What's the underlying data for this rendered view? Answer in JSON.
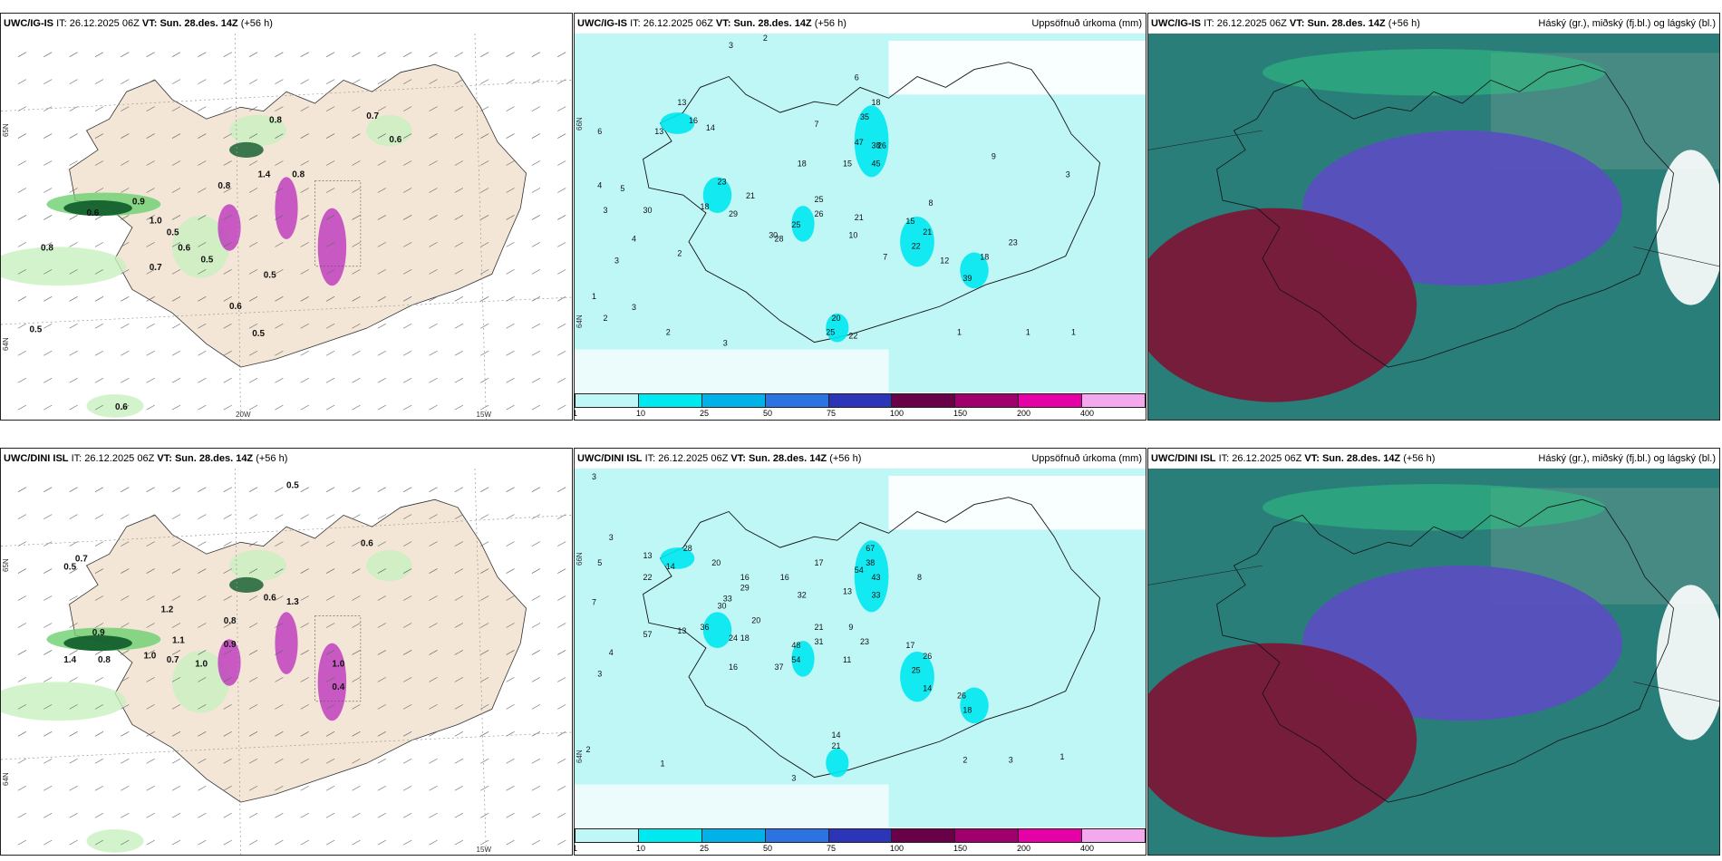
{
  "panels": [
    {
      "id": "p1",
      "source": "UWC/IG-IS",
      "it_label": "IT:",
      "it": "26.12.2025 06Z",
      "vt_label": "VT:",
      "vt": "Sun. 28.des. 14Z",
      "lead": "(+56 h)",
      "product": "",
      "kind": "cloud-wind",
      "values": [
        {
          "t": "0.8",
          "x": 0.47,
          "y": 0.23
        },
        {
          "t": "0.7",
          "x": 0.64,
          "y": 0.22
        },
        {
          "t": "0.6",
          "x": 0.68,
          "y": 0.28
        },
        {
          "t": "0.8",
          "x": 0.38,
          "y": 0.4
        },
        {
          "t": "0.6",
          "x": 0.15,
          "y": 0.47
        },
        {
          "t": "0.9",
          "x": 0.23,
          "y": 0.44
        },
        {
          "t": "1.0",
          "x": 0.26,
          "y": 0.49
        },
        {
          "t": "0.5",
          "x": 0.29,
          "y": 0.52
        },
        {
          "t": "0.6",
          "x": 0.31,
          "y": 0.56
        },
        {
          "t": "0.5",
          "x": 0.35,
          "y": 0.59
        },
        {
          "t": "0.7",
          "x": 0.26,
          "y": 0.61
        },
        {
          "t": "0.8",
          "x": 0.07,
          "y": 0.56
        },
        {
          "t": "0.5",
          "x": 0.46,
          "y": 0.63
        },
        {
          "t": "0.6",
          "x": 0.4,
          "y": 0.71
        },
        {
          "t": "0.5",
          "x": 0.05,
          "y": 0.77
        },
        {
          "t": "0.5",
          "x": 0.44,
          "y": 0.78
        },
        {
          "t": "0.6",
          "x": 0.2,
          "y": 0.97
        },
        {
          "t": "1.4",
          "x": 0.45,
          "y": 0.37
        },
        {
          "t": "0.8",
          "x": 0.51,
          "y": 0.37
        }
      ],
      "lon_labels": [
        "20W",
        "15W"
      ],
      "lat_labels": [
        "65N",
        "64N"
      ]
    },
    {
      "id": "p2",
      "source": "UWC/IG-IS",
      "it_label": "IT:",
      "it": "26.12.2025 06Z",
      "vt_label": "VT:",
      "vt": "Sun. 28.des. 14Z",
      "lead": "(+56 h)",
      "product": "Uppsöfnuð úrkoma (mm)",
      "kind": "precip",
      "values": [
        {
          "t": "13",
          "x": 0.18,
          "y": 0.2
        },
        {
          "t": "16",
          "x": 0.2,
          "y": 0.25
        },
        {
          "t": "14",
          "x": 0.23,
          "y": 0.27
        },
        {
          "t": "13",
          "x": 0.14,
          "y": 0.28
        },
        {
          "t": "18",
          "x": 0.52,
          "y": 0.2
        },
        {
          "t": "35",
          "x": 0.5,
          "y": 0.24
        },
        {
          "t": "47",
          "x": 0.49,
          "y": 0.31
        },
        {
          "t": "38",
          "x": 0.52,
          "y": 0.32
        },
        {
          "t": "26",
          "x": 0.53,
          "y": 0.32
        },
        {
          "t": "45",
          "x": 0.52,
          "y": 0.37
        },
        {
          "t": "18",
          "x": 0.39,
          "y": 0.37
        },
        {
          "t": "15",
          "x": 0.47,
          "y": 0.37
        },
        {
          "t": "23",
          "x": 0.25,
          "y": 0.42
        },
        {
          "t": "21",
          "x": 0.3,
          "y": 0.46
        },
        {
          "t": "18",
          "x": 0.22,
          "y": 0.49
        },
        {
          "t": "29",
          "x": 0.27,
          "y": 0.51
        },
        {
          "t": "25",
          "x": 0.42,
          "y": 0.47
        },
        {
          "t": "26",
          "x": 0.42,
          "y": 0.51
        },
        {
          "t": "21",
          "x": 0.49,
          "y": 0.52
        },
        {
          "t": "30",
          "x": 0.34,
          "y": 0.57
        },
        {
          "t": "28",
          "x": 0.35,
          "y": 0.58
        },
        {
          "t": "25",
          "x": 0.38,
          "y": 0.54
        },
        {
          "t": "15",
          "x": 0.58,
          "y": 0.53
        },
        {
          "t": "21",
          "x": 0.61,
          "y": 0.56
        },
        {
          "t": "22",
          "x": 0.59,
          "y": 0.6
        },
        {
          "t": "12",
          "x": 0.64,
          "y": 0.64
        },
        {
          "t": "18",
          "x": 0.71,
          "y": 0.63
        },
        {
          "t": "39",
          "x": 0.68,
          "y": 0.69
        },
        {
          "t": "23",
          "x": 0.76,
          "y": 0.59
        },
        {
          "t": "20",
          "x": 0.45,
          "y": 0.8
        },
        {
          "t": "25",
          "x": 0.44,
          "y": 0.84
        },
        {
          "t": "22",
          "x": 0.48,
          "y": 0.85
        },
        {
          "t": "30",
          "x": 0.12,
          "y": 0.5
        },
        {
          "t": "6",
          "x": 0.04,
          "y": 0.28
        },
        {
          "t": "4",
          "x": 0.04,
          "y": 0.43
        },
        {
          "t": "5",
          "x": 0.08,
          "y": 0.44
        },
        {
          "t": "3",
          "x": 0.05,
          "y": 0.5
        },
        {
          "t": "4",
          "x": 0.1,
          "y": 0.58
        },
        {
          "t": "3",
          "x": 0.07,
          "y": 0.64
        },
        {
          "t": "2",
          "x": 0.18,
          "y": 0.62
        },
        {
          "t": "1",
          "x": 0.03,
          "y": 0.74
        },
        {
          "t": "3",
          "x": 0.1,
          "y": 0.77
        },
        {
          "t": "2",
          "x": 0.05,
          "y": 0.8
        },
        {
          "t": "2",
          "x": 0.16,
          "y": 0.84
        },
        {
          "t": "3",
          "x": 0.26,
          "y": 0.87
        },
        {
          "t": "1",
          "x": 0.67,
          "y": 0.84
        },
        {
          "t": "1",
          "x": 0.79,
          "y": 0.84
        },
        {
          "t": "1",
          "x": 0.87,
          "y": 0.84
        },
        {
          "t": "3",
          "x": 0.27,
          "y": 0.04
        },
        {
          "t": "2",
          "x": 0.33,
          "y": 0.02
        },
        {
          "t": "6",
          "x": 0.49,
          "y": 0.13
        },
        {
          "t": "7",
          "x": 0.42,
          "y": 0.26
        },
        {
          "t": "8",
          "x": 0.62,
          "y": 0.48
        },
        {
          "t": "10",
          "x": 0.48,
          "y": 0.57
        },
        {
          "t": "7",
          "x": 0.54,
          "y": 0.63
        },
        {
          "t": "9",
          "x": 0.73,
          "y": 0.35
        },
        {
          "t": "3",
          "x": 0.86,
          "y": 0.4
        }
      ],
      "scale": [
        "1",
        "10",
        "25",
        "50",
        "75",
        "100",
        "150",
        "200",
        "400"
      ],
      "scale_colors": [
        "#bff6f6",
        "#00e8f0",
        "#00b2e8",
        "#2a73e0",
        "#2c34b8",
        "#6a0047",
        "#a0006e",
        "#e600a8",
        "#f4a8ee"
      ],
      "lat_labels": [
        "66N",
        "64N"
      ]
    },
    {
      "id": "p3",
      "source": "UWC/IG-IS",
      "it_label": "IT:",
      "it": "26.12.2025 06Z",
      "vt_label": "VT:",
      "vt": "Sun. 28.des. 14Z",
      "lead": "(+56 h)",
      "product": "Háský (gr.), miðský (fj.bl.) og lágský (bl.)",
      "kind": "clouds"
    },
    {
      "id": "p4",
      "source": "UWC/DINI ISL",
      "it_label": "IT:",
      "it": "26.12.2025 06Z",
      "vt_label": "VT:",
      "vt": "Sun. 28.des. 14Z",
      "lead": "(+56 h)",
      "product": "",
      "kind": "cloud-wind",
      "values": [
        {
          "t": "0.5",
          "x": 0.5,
          "y": 0.05
        },
        {
          "t": "0.6",
          "x": 0.63,
          "y": 0.2
        },
        {
          "t": "0.7",
          "x": 0.13,
          "y": 0.24
        },
        {
          "t": "0.5",
          "x": 0.11,
          "y": 0.26
        },
        {
          "t": "1.2",
          "x": 0.28,
          "y": 0.37
        },
        {
          "t": "0.9",
          "x": 0.16,
          "y": 0.43
        },
        {
          "t": "1.1",
          "x": 0.3,
          "y": 0.45
        },
        {
          "t": "1.0",
          "x": 0.25,
          "y": 0.49
        },
        {
          "t": "0.7",
          "x": 0.29,
          "y": 0.5
        },
        {
          "t": "0.8",
          "x": 0.17,
          "y": 0.5
        },
        {
          "t": "1.4",
          "x": 0.11,
          "y": 0.5
        },
        {
          "t": "1.0",
          "x": 0.34,
          "y": 0.51
        },
        {
          "t": "0.9",
          "x": 0.39,
          "y": 0.46
        },
        {
          "t": "0.8",
          "x": 0.39,
          "y": 0.4
        },
        {
          "t": "0.6",
          "x": 0.46,
          "y": 0.34
        },
        {
          "t": "1.3",
          "x": 0.5,
          "y": 0.35
        },
        {
          "t": "0.4",
          "x": 0.58,
          "y": 0.57
        },
        {
          "t": "1.0",
          "x": 0.58,
          "y": 0.51
        }
      ],
      "lon_labels": [
        "15W"
      ],
      "lat_labels": [
        "65N",
        "64N"
      ]
    },
    {
      "id": "p5",
      "source": "UWC/DINI ISL",
      "it_label": "IT:",
      "it": "26.12.2025 06Z",
      "vt_label": "VT:",
      "vt": "Sun. 28.des. 14Z",
      "lead": "(+56 h)",
      "product": "Uppsöfnuð úrkoma (mm)",
      "kind": "precip",
      "values": [
        {
          "t": "13",
          "x": 0.12,
          "y": 0.25
        },
        {
          "t": "22",
          "x": 0.12,
          "y": 0.31
        },
        {
          "t": "14",
          "x": 0.16,
          "y": 0.28
        },
        {
          "t": "28",
          "x": 0.19,
          "y": 0.23
        },
        {
          "t": "20",
          "x": 0.24,
          "y": 0.27
        },
        {
          "t": "16",
          "x": 0.29,
          "y": 0.31
        },
        {
          "t": "29",
          "x": 0.29,
          "y": 0.34
        },
        {
          "t": "33",
          "x": 0.26,
          "y": 0.37
        },
        {
          "t": "30",
          "x": 0.25,
          "y": 0.39
        },
        {
          "t": "20",
          "x": 0.31,
          "y": 0.43
        },
        {
          "t": "16",
          "x": 0.36,
          "y": 0.31
        },
        {
          "t": "17",
          "x": 0.42,
          "y": 0.27
        },
        {
          "t": "32",
          "x": 0.39,
          "y": 0.36
        },
        {
          "t": "67",
          "x": 0.51,
          "y": 0.23
        },
        {
          "t": "38",
          "x": 0.51,
          "y": 0.27
        },
        {
          "t": "54",
          "x": 0.49,
          "y": 0.29
        },
        {
          "t": "43",
          "x": 0.52,
          "y": 0.31
        },
        {
          "t": "33",
          "x": 0.52,
          "y": 0.36
        },
        {
          "t": "13",
          "x": 0.47,
          "y": 0.35
        },
        {
          "t": "36",
          "x": 0.22,
          "y": 0.45
        },
        {
          "t": "13",
          "x": 0.18,
          "y": 0.46
        },
        {
          "t": "57",
          "x": 0.12,
          "y": 0.47
        },
        {
          "t": "24",
          "x": 0.27,
          "y": 0.48
        },
        {
          "t": "18",
          "x": 0.29,
          "y": 0.48
        },
        {
          "t": "21",
          "x": 0.42,
          "y": 0.45
        },
        {
          "t": "31",
          "x": 0.42,
          "y": 0.49
        },
        {
          "t": "48",
          "x": 0.38,
          "y": 0.5
        },
        {
          "t": "54",
          "x": 0.38,
          "y": 0.54
        },
        {
          "t": "37",
          "x": 0.35,
          "y": 0.56
        },
        {
          "t": "23",
          "x": 0.5,
          "y": 0.49
        },
        {
          "t": "17",
          "x": 0.58,
          "y": 0.5
        },
        {
          "t": "26",
          "x": 0.61,
          "y": 0.53
        },
        {
          "t": "25",
          "x": 0.59,
          "y": 0.57
        },
        {
          "t": "14",
          "x": 0.61,
          "y": 0.62
        },
        {
          "t": "26",
          "x": 0.67,
          "y": 0.64
        },
        {
          "t": "18",
          "x": 0.68,
          "y": 0.68
        },
        {
          "t": "16",
          "x": 0.27,
          "y": 0.56
        },
        {
          "t": "14",
          "x": 0.45,
          "y": 0.75
        },
        {
          "t": "21",
          "x": 0.45,
          "y": 0.78
        },
        {
          "t": "3",
          "x": 0.03,
          "y": 0.03
        },
        {
          "t": "3",
          "x": 0.06,
          "y": 0.2
        },
        {
          "t": "5",
          "x": 0.04,
          "y": 0.27
        },
        {
          "t": "7",
          "x": 0.03,
          "y": 0.38
        },
        {
          "t": "4",
          "x": 0.06,
          "y": 0.52
        },
        {
          "t": "3",
          "x": 0.04,
          "y": 0.58
        },
        {
          "t": "2",
          "x": 0.02,
          "y": 0.79
        },
        {
          "t": "1",
          "x": 0.15,
          "y": 0.83
        },
        {
          "t": "3",
          "x": 0.38,
          "y": 0.87
        },
        {
          "t": "1",
          "x": 0.85,
          "y": 0.81
        },
        {
          "t": "3",
          "x": 0.76,
          "y": 0.82
        },
        {
          "t": "2",
          "x": 0.68,
          "y": 0.82
        },
        {
          "t": "9",
          "x": 0.48,
          "y": 0.45
        },
        {
          "t": "8",
          "x": 0.6,
          "y": 0.31
        },
        {
          "t": "11",
          "x": 0.47,
          "y": 0.54
        }
      ],
      "scale": [
        "1",
        "10",
        "25",
        "50",
        "75",
        "100",
        "150",
        "200",
        "400"
      ],
      "scale_colors": [
        "#bff6f6",
        "#00e8f0",
        "#00b2e8",
        "#2a73e0",
        "#2c34b8",
        "#6a0047",
        "#a0006e",
        "#e600a8",
        "#f4a8ee"
      ],
      "lat_labels": [
        "66N",
        "64N"
      ]
    },
    {
      "id": "p6",
      "source": "UWC/DINI ISL",
      "it_label": "IT:",
      "it": "26.12.2025 06Z",
      "vt_label": "VT:",
      "vt": "Sun. 28.des. 14Z",
      "lead": "(+56 h)",
      "product": "Háský (gr.), miðský (fj.bl.) og lágský (bl.)",
      "kind": "clouds"
    }
  ],
  "colors": {
    "land": "#f4e6d6",
    "green_light": "#c8f0c0",
    "green_mid": "#6dcf70",
    "green_dark": "#0e5a2a",
    "magenta": "#c040c0",
    "precip_bg": "#bff6f6",
    "precip_mid": "#00e8f0",
    "cl_high": "#2a7e7a",
    "cl_mid": "#5a4fc0",
    "cl_low": "#7a1838",
    "cl_green": "#2ec882"
  }
}
